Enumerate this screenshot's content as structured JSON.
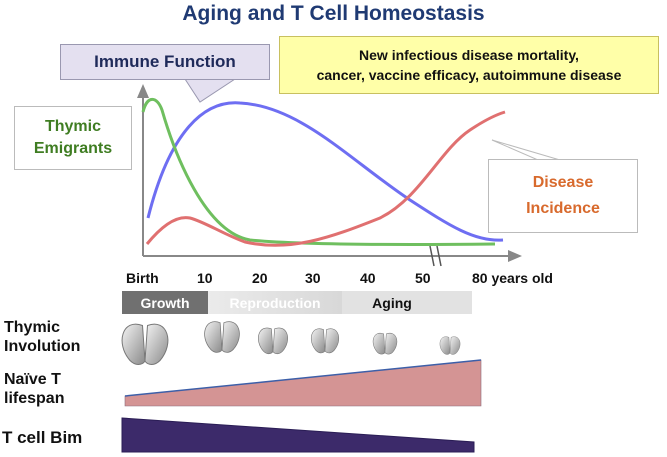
{
  "title": "Aging and T Cell Homeostasis",
  "callouts": {
    "immune_function": "Immune Function",
    "yellow_line1": "New infectious disease mortality,",
    "yellow_line2": "cancer, vaccine efficacy, autoimmune disease",
    "thymic_line1": "Thymic",
    "thymic_line2": "Emigrants",
    "disease_line1": "Disease",
    "disease_line2": "Incidence"
  },
  "axis": {
    "ticks": [
      "Birth",
      "10",
      "20",
      "30",
      "40",
      "50",
      "80 years old"
    ]
  },
  "phases": [
    "Growth",
    "Reproduction",
    "Aging"
  ],
  "rows": {
    "involution_1": "Thymic",
    "involution_2": "Involution",
    "naive_1": "Naïve T",
    "naive_2": "lifespan",
    "bim": "T cell Bim"
  },
  "colors": {
    "immune_curve": "#6e6ef2",
    "thymic_curve": "#6fbf5f",
    "disease_curve": "#e07070",
    "naive_wedge": "#d49494",
    "bim_wedge": "#3c2a6a",
    "title": "#1f3a73"
  }
}
